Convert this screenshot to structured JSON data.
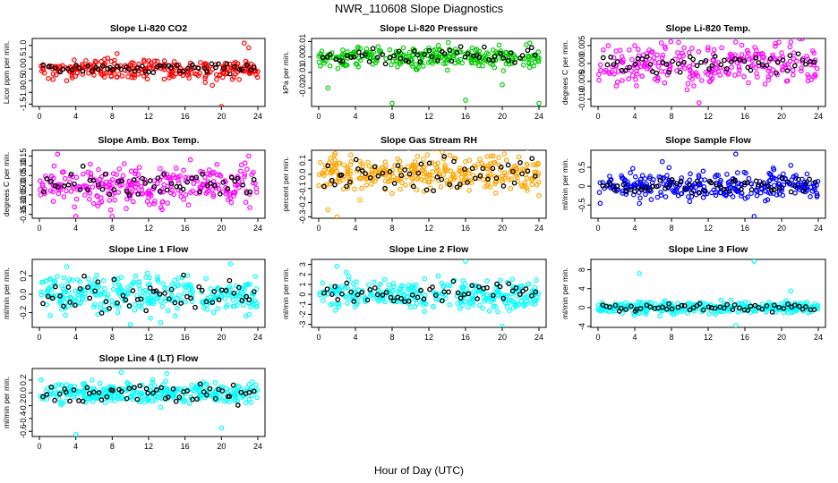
{
  "title": "NWR_110608  Slope Diagnostics",
  "xlabel": "Hour of Day (UTC)",
  "colors": {
    "overlay": "#000000",
    "red": "#ff0000",
    "green": "#00cc00",
    "magenta": "#ff00ff",
    "orange": "#ffa500",
    "blue": "#0000ff",
    "cyan": "#00ffff"
  },
  "chart_data": [
    {
      "type": "scatter",
      "title": "Slope Li-820 CO2",
      "ylabel": "Licor ppm per min.",
      "color": "red",
      "xlim": [
        0,
        24
      ],
      "xticks": [
        0,
        4,
        8,
        12,
        16,
        20,
        24
      ],
      "ylim": [
        -1.6,
        1.3
      ],
      "yticks": [
        -1.5,
        -1.0,
        -0.5,
        0.0,
        0.5,
        1.0
      ],
      "ytick_labels": [
        "-1.5",
        "-1.0",
        "-0.5",
        "0.0",
        "0.5",
        "1.0"
      ],
      "spread": 0.3,
      "overlay_spread": 0.15,
      "n": 260,
      "n_overlay": 55,
      "outliers": [
        [
          19,
          -0.7
        ],
        [
          20,
          -1.6
        ],
        [
          22.5,
          1.1
        ],
        [
          3,
          -0.5
        ],
        [
          23,
          0.9
        ]
      ]
    },
    {
      "type": "scatter",
      "title": "Slope Li-820 Pressure",
      "ylabel": "kPa per min.",
      "color": "green",
      "xlim": [
        0,
        24
      ],
      "xticks": [
        0,
        4,
        8,
        12,
        16,
        20,
        24
      ],
      "ylim": [
        -0.032,
        0.012
      ],
      "yticks": [
        -0.02,
        -0.01,
        0.0,
        0.01
      ],
      "ytick_labels": [
        "-0.02",
        "-0.01",
        "0.00",
        "0.01"
      ],
      "spread": 0.005,
      "overlay_spread": 0.004,
      "n": 280,
      "n_overlay": 55,
      "outliers": [
        [
          8,
          -0.03
        ],
        [
          16,
          -0.028
        ],
        [
          24,
          -0.03
        ],
        [
          1,
          -0.02
        ],
        [
          20,
          -0.018
        ],
        [
          23,
          0.009
        ]
      ]
    },
    {
      "type": "scatter",
      "title": "Slope Li-820 Temp.",
      "ylabel": "degrees C per min.",
      "color": "magenta",
      "xlim": [
        0,
        24
      ],
      "xticks": [
        0,
        4,
        8,
        12,
        16,
        20,
        24
      ],
      "ylim": [
        -0.012,
        0.007
      ],
      "yticks": [
        -0.01,
        -0.005,
        0.0,
        0.005
      ],
      "ytick_labels": [
        "-0.010",
        "-0.005",
        "0.000",
        "0.005"
      ],
      "spread": 0.004,
      "overlay_spread": 0.002,
      "n": 260,
      "n_overlay": 55,
      "outliers": [
        [
          11,
          -0.011
        ],
        [
          15,
          0.006
        ],
        [
          21,
          0.006
        ],
        [
          4,
          0.005
        ]
      ]
    },
    {
      "type": "scatter",
      "title": "Slope Amb. Box Temp.",
      "ylabel": "degrees C per min.",
      "color": "magenta",
      "xlim": [
        0,
        24
      ],
      "xticks": [
        0,
        4,
        8,
        12,
        16,
        20,
        24
      ],
      "ylim": [
        -0.17,
        0.18
      ],
      "yticks": [
        -0.15,
        -0.1,
        -0.05,
        0.0,
        0.05,
        0.1,
        0.15
      ],
      "ytick_labels": [
        "-0.15",
        "-0.10",
        "-0.05",
        "0.00",
        "0.05",
        "0.10",
        "0.15"
      ],
      "spread": 0.07,
      "overlay_spread": 0.05,
      "n": 280,
      "n_overlay": 55,
      "outliers": [
        [
          4,
          -0.16
        ],
        [
          8,
          -0.16
        ],
        [
          2,
          0.16
        ],
        [
          23,
          0.15
        ]
      ]
    },
    {
      "type": "scatter",
      "title": "Slope Gas Stream RH",
      "ylabel": "percent per min.",
      "color": "orange",
      "xlim": [
        0,
        24
      ],
      "xticks": [
        0,
        4,
        8,
        12,
        16,
        20,
        24
      ],
      "ylim": [
        -0.31,
        0.17
      ],
      "yticks": [
        -0.3,
        -0.2,
        -0.1,
        0.0,
        0.1
      ],
      "ytick_labels": [
        "-0.3",
        "-0.2",
        "-0.1",
        "0.0",
        "0.1"
      ],
      "spread": 0.09,
      "overlay_spread": 0.07,
      "n": 320,
      "n_overlay": 55,
      "outliers": [
        [
          2,
          -0.3
        ],
        [
          1,
          -0.25
        ],
        [
          19,
          0.13
        ],
        [
          24,
          -0.15
        ]
      ]
    },
    {
      "type": "scatter",
      "title": "Slope Sample Flow",
      "ylabel": "ml/min per min.",
      "color": "blue",
      "xlim": [
        0,
        24
      ],
      "xticks": [
        0,
        4,
        8,
        12,
        16,
        20,
        24
      ],
      "ylim": [
        -0.85,
        0.95
      ],
      "yticks": [
        -0.5,
        0.0,
        0.5
      ],
      "ytick_labels": [
        "-0.5",
        "0",
        "0.5"
      ],
      "spread": 0.25,
      "overlay_spread": 0.15,
      "n": 300,
      "n_overlay": 55,
      "outliers": [
        [
          15,
          0.85
        ],
        [
          17,
          -0.8
        ],
        [
          7,
          0.65
        ],
        [
          21,
          0.55
        ]
      ]
    },
    {
      "type": "scatter",
      "title": "Slope Line 1 Flow",
      "ylabel": "ml/min per min.",
      "color": "cyan",
      "xlim": [
        0,
        24
      ],
      "xticks": [
        0,
        4,
        8,
        12,
        16,
        20,
        24
      ],
      "ylim": [
        -0.36,
        0.38
      ],
      "yticks": [
        -0.2,
        0.0,
        0.2
      ],
      "ytick_labels": [
        "-0.2",
        "0.0",
        "0.2"
      ],
      "spread": 0.14,
      "overlay_spread": 0.13,
      "n": 300,
      "n_overlay": 55,
      "outliers": [
        [
          10,
          -0.33
        ],
        [
          21,
          0.33
        ],
        [
          3,
          0.3
        ]
      ]
    },
    {
      "type": "scatter",
      "title": "Slope Line 2 Flow",
      "ylabel": "ml/min per min.",
      "color": "cyan",
      "xlim": [
        0,
        24
      ],
      "xticks": [
        0,
        4,
        8,
        12,
        16,
        20,
        24
      ],
      "ylim": [
        -3.3,
        3.5
      ],
      "yticks": [
        -3,
        -2,
        -1,
        0,
        1,
        2,
        3
      ],
      "ytick_labels": [
        "-3",
        "-2",
        "-1",
        "0",
        "1",
        "2",
        "3"
      ],
      "spread": 1.0,
      "overlay_spread": 0.9,
      "n": 300,
      "n_overlay": 55,
      "outliers": [
        [
          16,
          3.3
        ],
        [
          2,
          2.8
        ],
        [
          20,
          -3.2
        ],
        [
          3,
          2.2
        ]
      ]
    },
    {
      "type": "scatter",
      "title": "Slope Line 3 Flow",
      "ylabel": "ml/min per min.",
      "color": "cyan",
      "xlim": [
        0,
        24
      ],
      "xticks": [
        0,
        4,
        8,
        12,
        16,
        20,
        24
      ],
      "ylim": [
        -4.2,
        10.2
      ],
      "yticks": [
        -4,
        0,
        4,
        8
      ],
      "ytick_labels": [
        "-4",
        "0",
        "4",
        "8"
      ],
      "spread": 0.9,
      "overlay_spread": 0.6,
      "n": 300,
      "n_overlay": 55,
      "outliers": [
        [
          4.5,
          7.2
        ],
        [
          17,
          9.8
        ],
        [
          15,
          -3.8
        ],
        [
          21,
          3.5
        ]
      ]
    },
    {
      "type": "scatter",
      "title": "Slope Line 4 (LT) Flow",
      "ylabel": "ml/min per min.",
      "color": "cyan",
      "xlim": [
        0,
        24
      ],
      "xticks": [
        0,
        4,
        8,
        12,
        16,
        20,
        24
      ],
      "ylim": [
        -0.68,
        0.38
      ],
      "yticks": [
        -0.6,
        -0.4,
        -0.2,
        0.0,
        0.2
      ],
      "ytick_labels": [
        "-0.6",
        "-0.4",
        "-0.2",
        "0.0",
        "0.2"
      ],
      "spread": 0.12,
      "overlay_spread": 0.1,
      "n": 300,
      "n_overlay": 55,
      "outliers": [
        [
          4,
          -0.65
        ],
        [
          20,
          -0.55
        ],
        [
          9,
          0.32
        ],
        [
          14,
          0.3
        ]
      ]
    }
  ]
}
